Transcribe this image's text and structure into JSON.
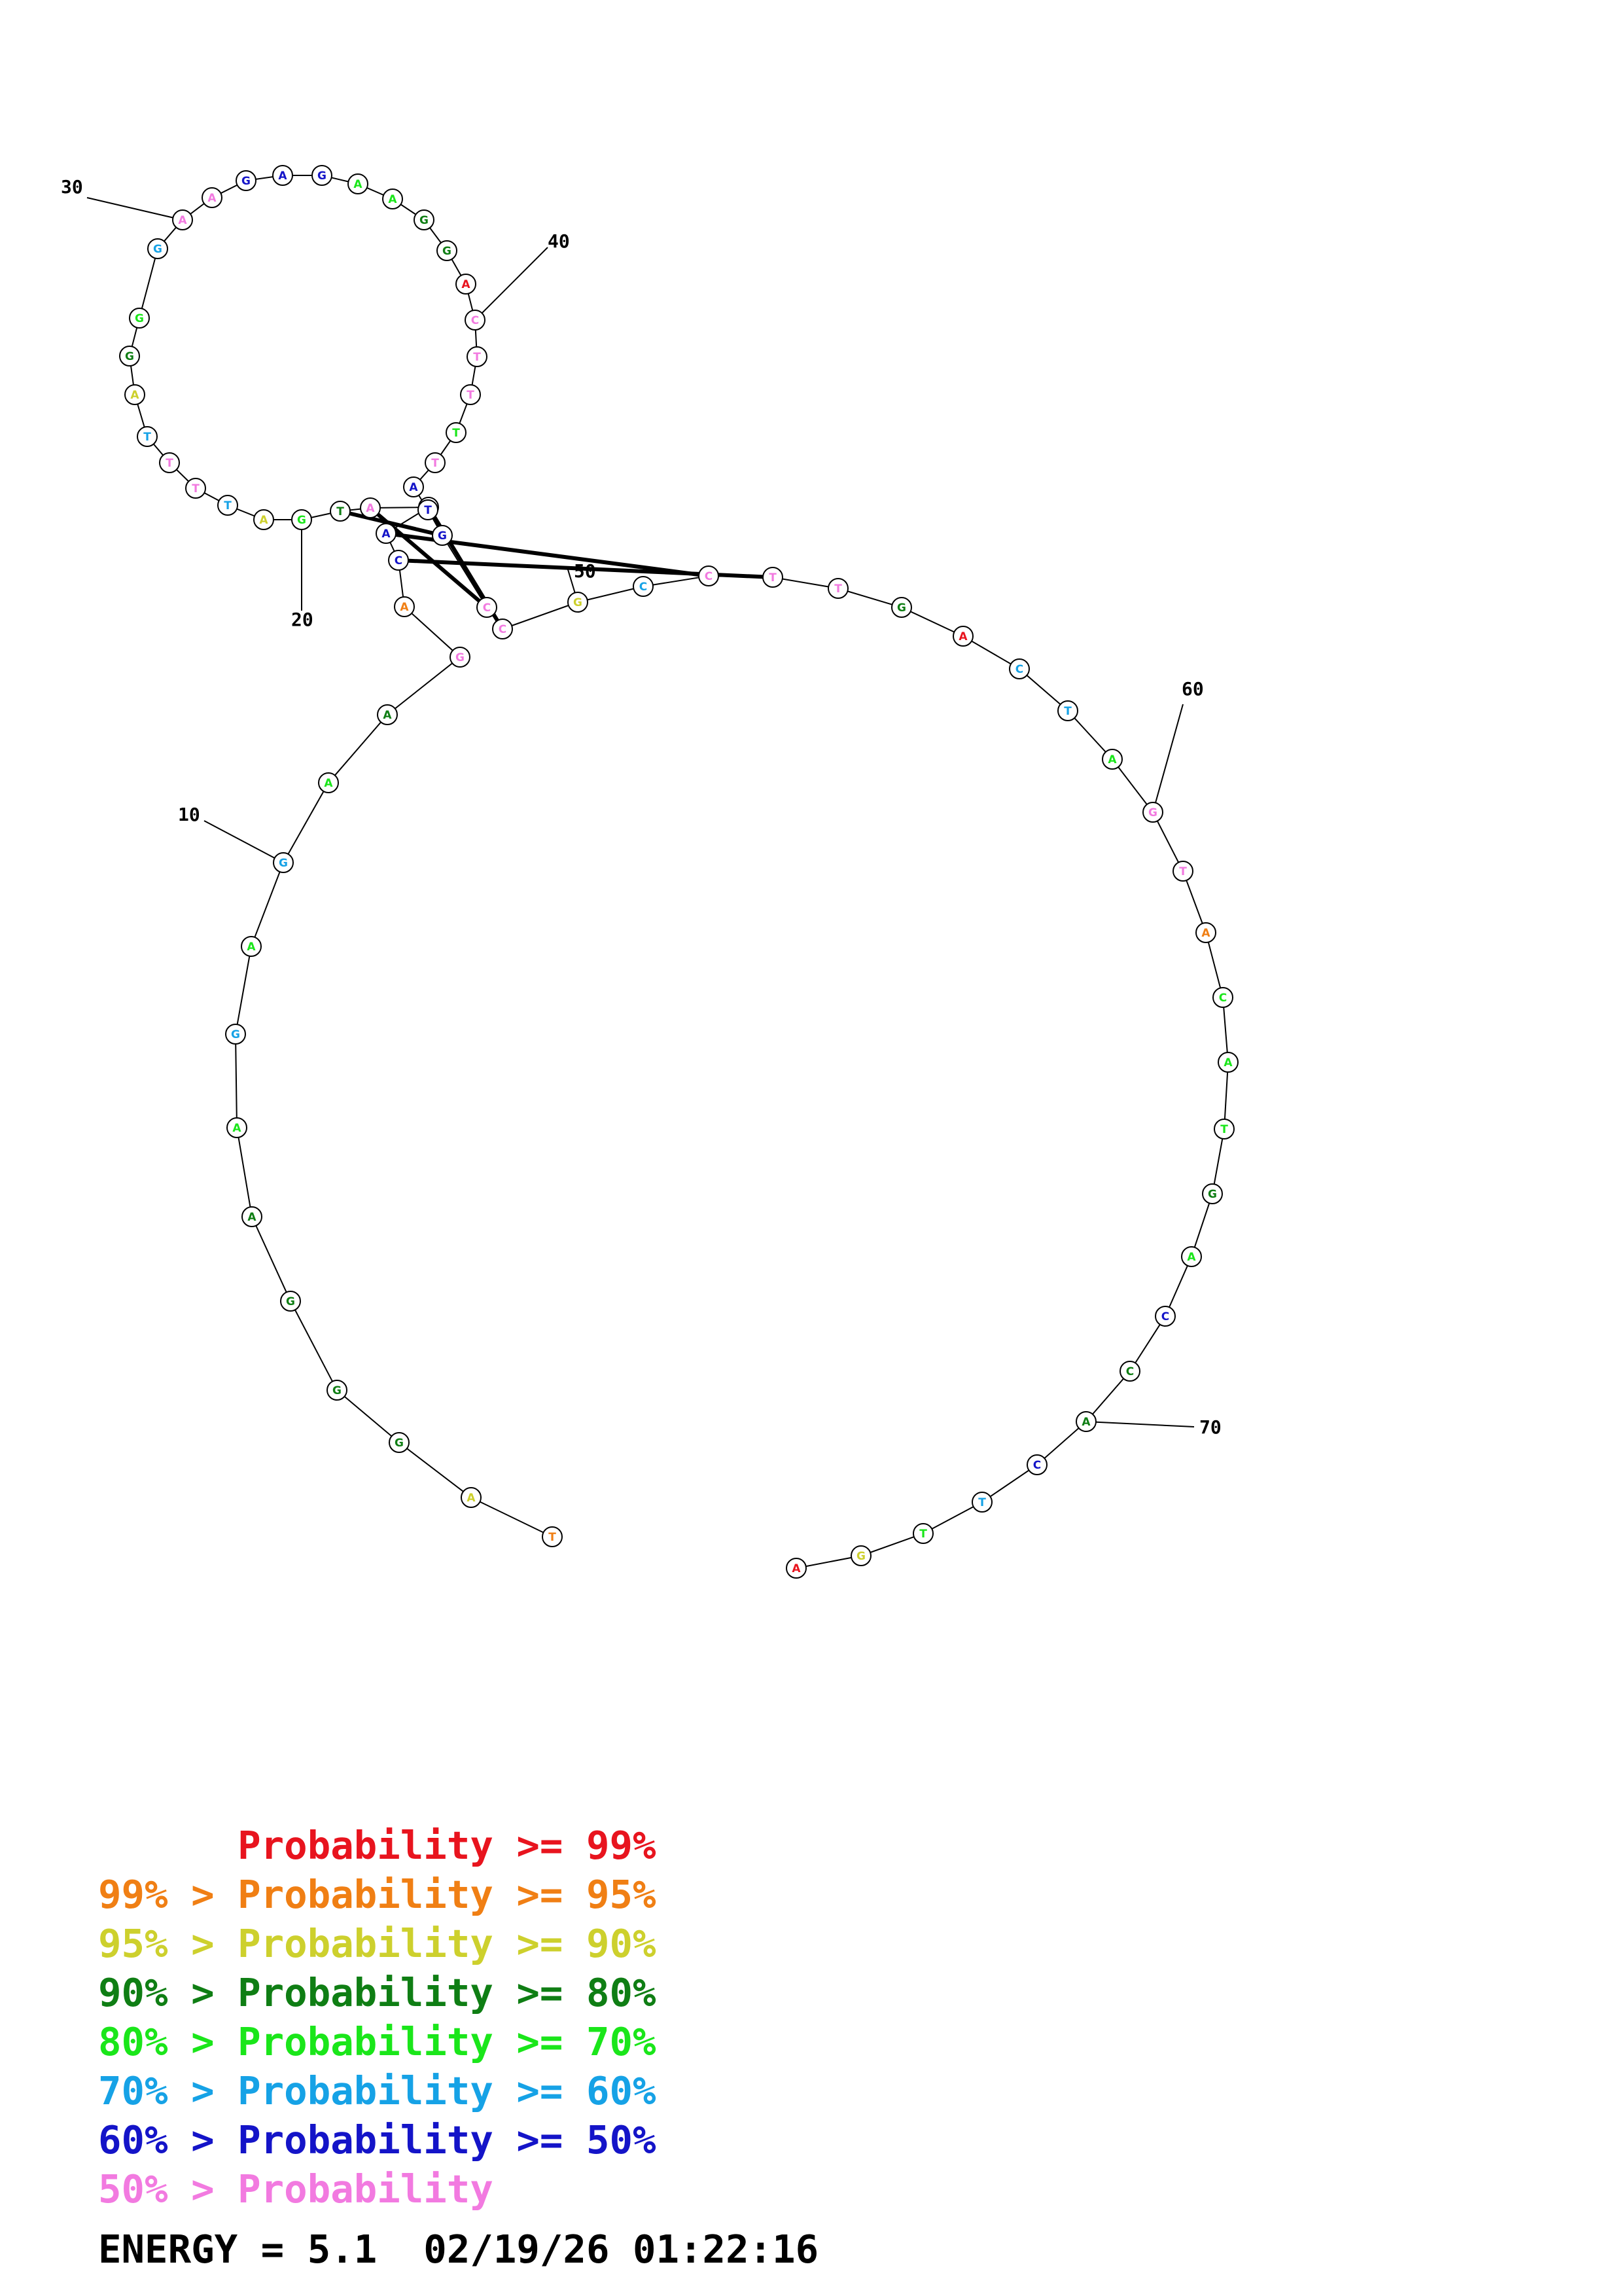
{
  "colors": {
    "p99": "#e8141e",
    "p95": "#f07f14",
    "p90": "#cdd02d",
    "p80": "#0f7e14",
    "p70": "#1ae61a",
    "p60": "#16a2e6",
    "p50": "#1414c8",
    "plow": "#f27ae0"
  },
  "sequence": [
    {
      "b": "T",
      "c": "p95"
    },
    {
      "b": "A",
      "c": "p90"
    },
    {
      "b": "G",
      "c": "p80"
    },
    {
      "b": "G",
      "c": "p80"
    },
    {
      "b": "G",
      "c": "p80"
    },
    {
      "b": "A",
      "c": "p80"
    },
    {
      "b": "A",
      "c": "p70"
    },
    {
      "b": "G",
      "c": "p60"
    },
    {
      "b": "A",
      "c": "p70"
    },
    {
      "b": "G",
      "c": "p60"
    },
    {
      "b": "A",
      "c": "p70"
    },
    {
      "b": "A",
      "c": "p80"
    },
    {
      "b": "G",
      "c": "plow"
    },
    {
      "b": "A",
      "c": "p95"
    },
    {
      "b": "C",
      "c": "p50"
    },
    {
      "b": "A",
      "c": "p50"
    },
    {
      "b": "T",
      "c": "p50"
    },
    {
      "b": "A",
      "c": "plow"
    },
    {
      "b": "T",
      "c": "p80"
    },
    {
      "b": "G",
      "c": "p70"
    },
    {
      "b": "A",
      "c": "p90"
    },
    {
      "b": "T",
      "c": "p60"
    },
    {
      "b": "T",
      "c": "plow"
    },
    {
      "b": "T",
      "c": "plow"
    },
    {
      "b": "T",
      "c": "p60"
    },
    {
      "b": "A",
      "c": "p90"
    },
    {
      "b": "G",
      "c": "p80"
    },
    {
      "b": "G",
      "c": "p70"
    },
    {
      "b": "G",
      "c": "p60"
    },
    {
      "b": "A",
      "c": "plow"
    },
    {
      "b": "A",
      "c": "plow"
    },
    {
      "b": "G",
      "c": "p50"
    },
    {
      "b": "A",
      "c": "p50"
    },
    {
      "b": "G",
      "c": "p50"
    },
    {
      "b": "A",
      "c": "p70"
    },
    {
      "b": "A",
      "c": "p70"
    },
    {
      "b": "G",
      "c": "p80"
    },
    {
      "b": "G",
      "c": "p80"
    },
    {
      "b": "A",
      "c": "p99"
    },
    {
      "b": "C",
      "c": "plow"
    },
    {
      "b": "T",
      "c": "plow"
    },
    {
      "b": "T",
      "c": "plow"
    },
    {
      "b": "T",
      "c": "p70"
    },
    {
      "b": "T",
      "c": "plow"
    },
    {
      "b": "A",
      "c": "p50"
    },
    {
      "b": "T",
      "c": "p50"
    },
    {
      "b": "G",
      "c": "p50"
    },
    {
      "b": "C",
      "c": "plow"
    },
    {
      "b": "C",
      "c": "plow"
    },
    {
      "b": "G",
      "c": "p90"
    },
    {
      "b": "C",
      "c": "p60"
    },
    {
      "b": "C",
      "c": "plow"
    },
    {
      "b": "T",
      "c": "plow"
    },
    {
      "b": "T",
      "c": "plow"
    },
    {
      "b": "G",
      "c": "p80"
    },
    {
      "b": "A",
      "c": "p99"
    },
    {
      "b": "C",
      "c": "p60"
    },
    {
      "b": "T",
      "c": "p60"
    },
    {
      "b": "A",
      "c": "p70"
    },
    {
      "b": "G",
      "c": "plow"
    },
    {
      "b": "T",
      "c": "plow"
    },
    {
      "b": "A",
      "c": "p95"
    },
    {
      "b": "C",
      "c": "p70"
    },
    {
      "b": "A",
      "c": "p70"
    },
    {
      "b": "T",
      "c": "p70"
    },
    {
      "b": "G",
      "c": "p80"
    },
    {
      "b": "A",
      "c": "p70"
    },
    {
      "b": "C",
      "c": "p50"
    },
    {
      "b": "C",
      "c": "p80"
    },
    {
      "b": "A",
      "c": "p80"
    },
    {
      "b": "C",
      "c": "p50"
    },
    {
      "b": "T",
      "c": "p60"
    },
    {
      "b": "T",
      "c": "p70"
    },
    {
      "b": "G",
      "c": "p90"
    },
    {
      "b": "A",
      "c": "p99"
    }
  ],
  "pairs": [
    [
      14,
      52
    ],
    [
      15,
      51
    ],
    [
      16,
      48
    ],
    [
      17,
      47
    ],
    [
      18,
      46
    ]
  ],
  "position_labels": [
    "10",
    "20",
    "30",
    "40",
    "50",
    "60",
    "70"
  ],
  "legend": [
    {
      "text": "      Probability >= 99%",
      "c": "p99"
    },
    {
      "text": "99% > Probability >= 95%",
      "c": "p95"
    },
    {
      "text": "95% > Probability >= 90%",
      "c": "p90"
    },
    {
      "text": "90% > Probability >= 80%",
      "c": "p80"
    },
    {
      "text": "80% > Probability >= 70%",
      "c": "p70"
    },
    {
      "text": "70% > Probability >= 60%",
      "c": "p60"
    },
    {
      "text": "60% > Probability >= 50%",
      "c": "p50"
    },
    {
      "text": "50% > Probability",
      "c": "plow"
    }
  ],
  "energy_line": "ENERGY = 5.1  02/19/26 01:22:16"
}
